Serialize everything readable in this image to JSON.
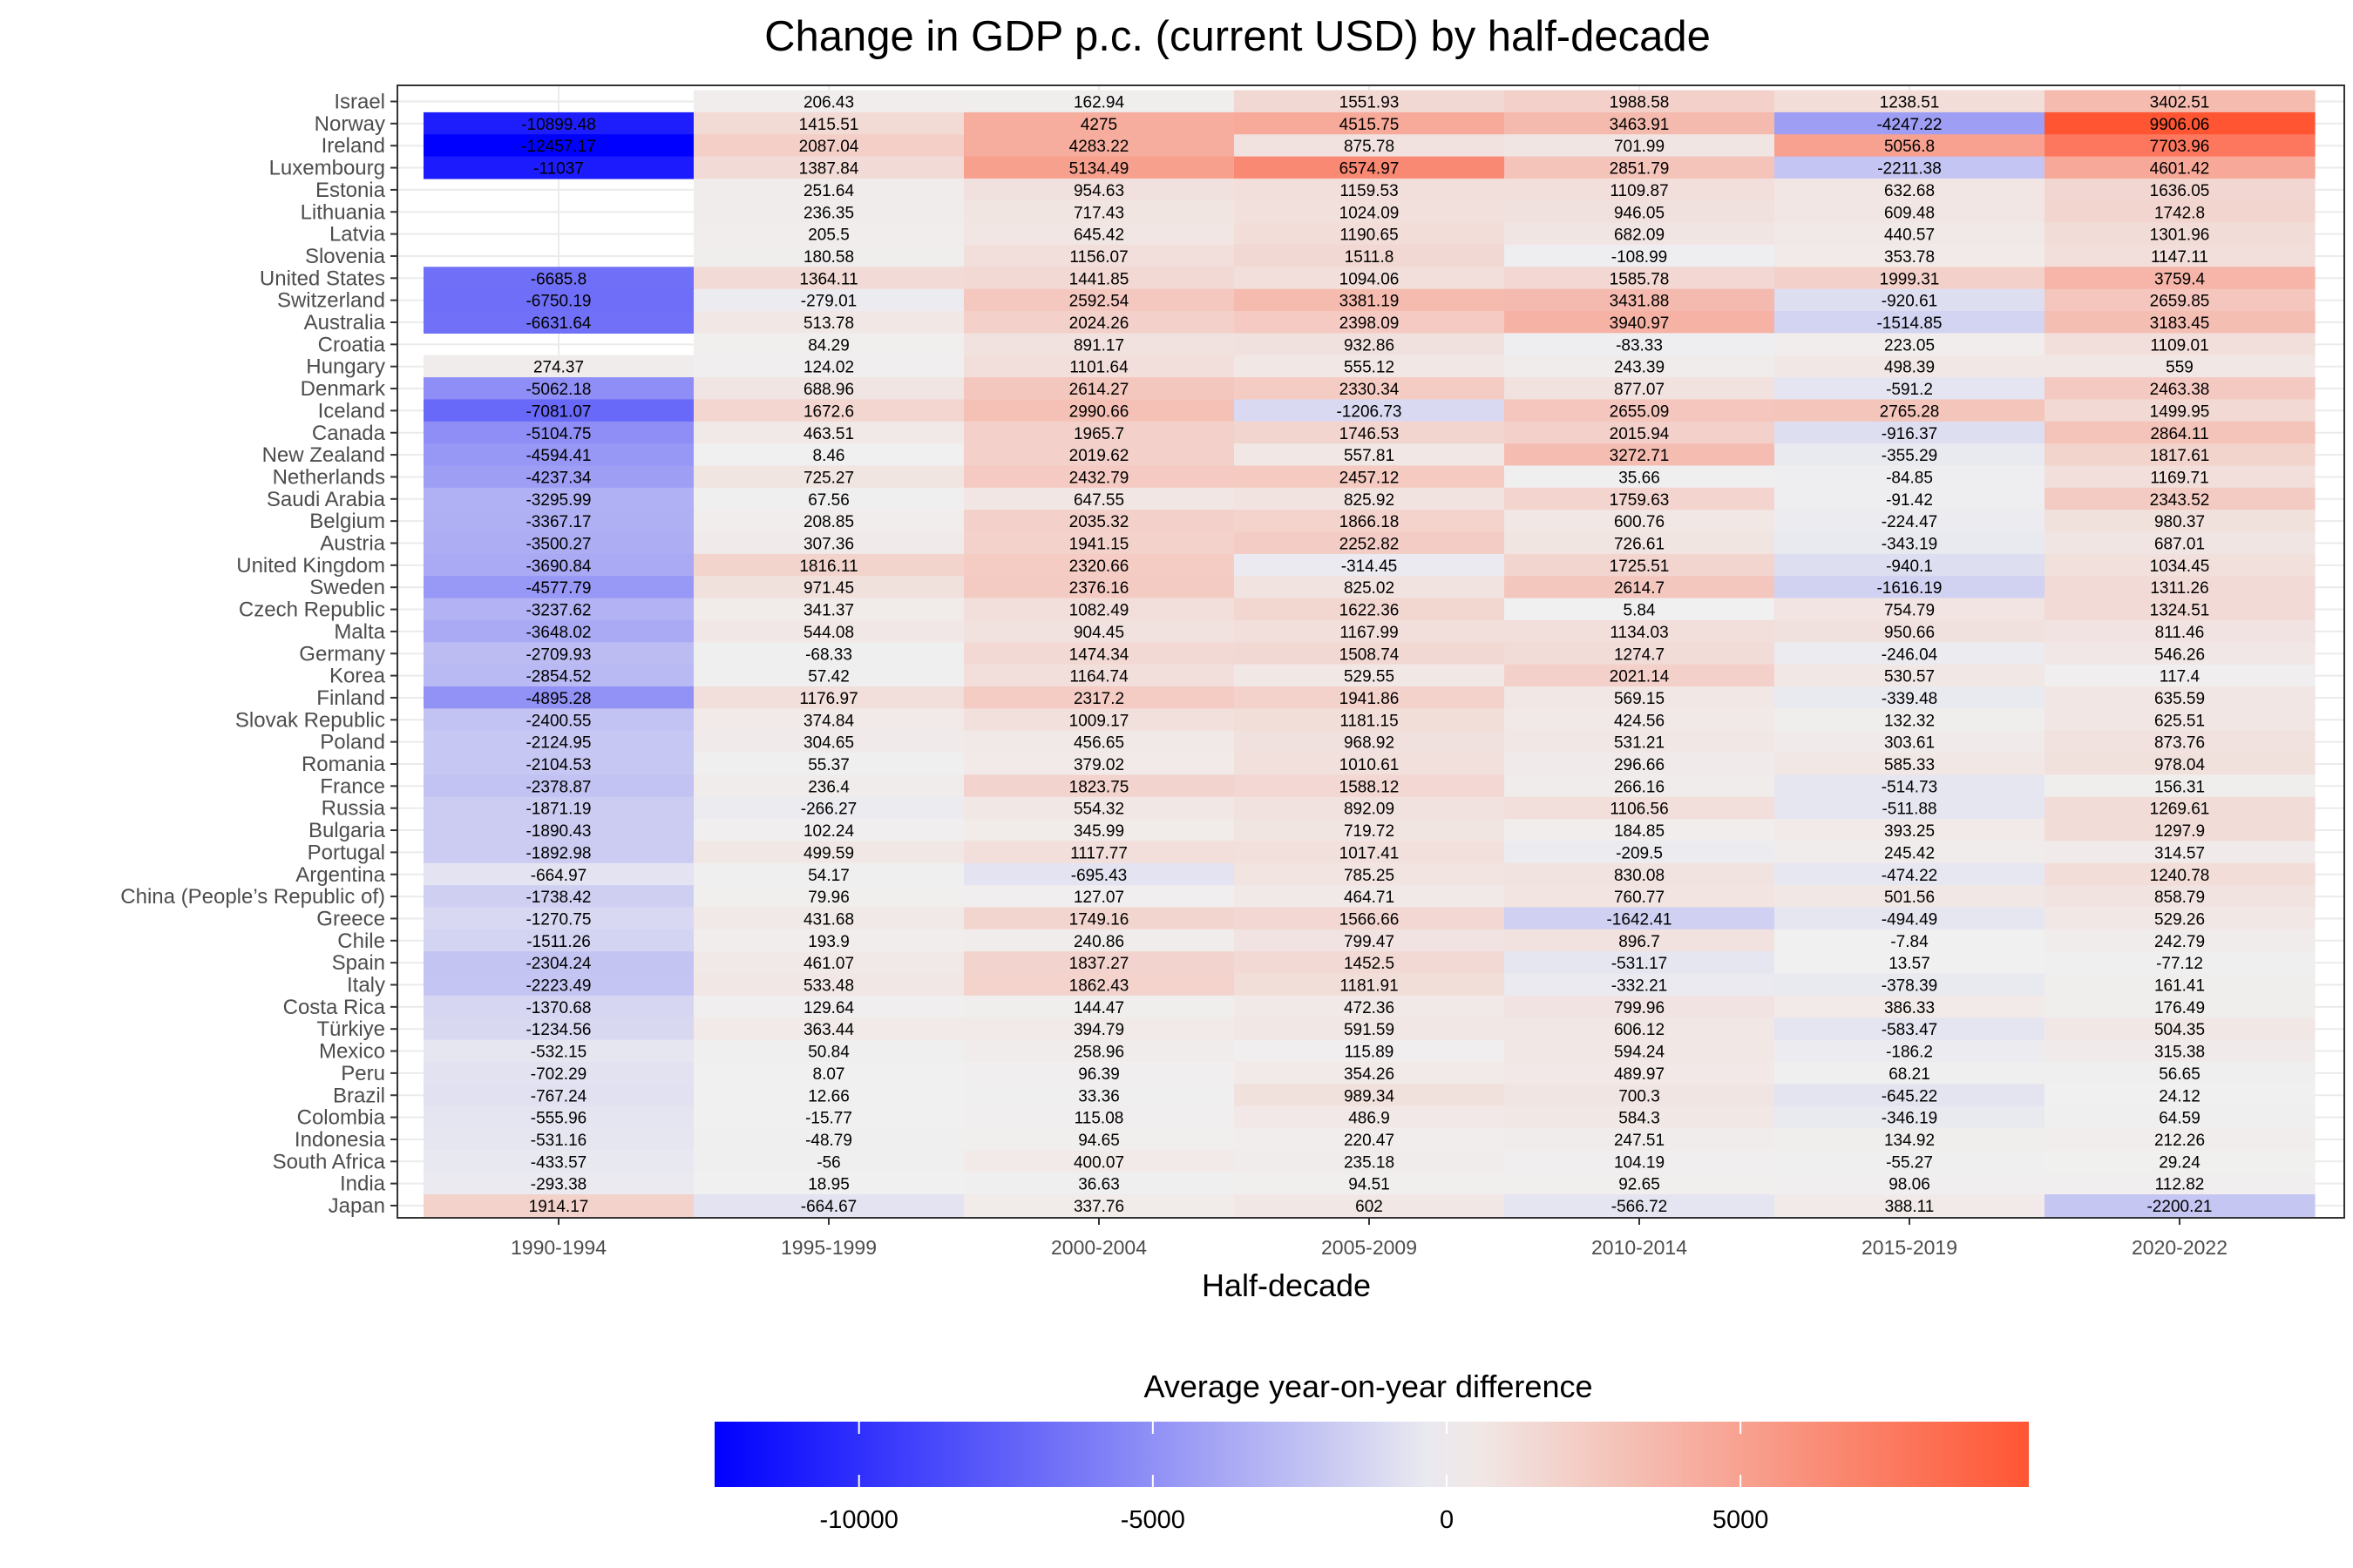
{
  "chart_data": {
    "type": "heatmap",
    "title": "Change in GDP p.c. (current USD) by half-decade",
    "xlabel": "Half-decade",
    "ylabel": "",
    "legend_title": "Average year-on-year difference",
    "legend_position": "bottom",
    "grid": true,
    "color_scale": {
      "low_color": "#0000ff",
      "mid_color": "#f0f0f0",
      "high_color": "#ff5533",
      "min": -12457.17,
      "max": 9906.06,
      "midpoint": 0,
      "ticks": [
        -10000,
        -5000,
        0,
        5000
      ],
      "tick_labels": [
        "-10000",
        "-5000",
        "0",
        "5000"
      ]
    },
    "x": [
      "1990-1994",
      "1995-1999",
      "2000-2004",
      "2005-2009",
      "2010-2014",
      "2015-2019",
      "2020-2022"
    ],
    "y": [
      "Israel",
      "Norway",
      "Ireland",
      "Luxembourg",
      "Estonia",
      "Lithuania",
      "Latvia",
      "Slovenia",
      "United States",
      "Switzerland",
      "Australia",
      "Croatia",
      "Hungary",
      "Denmark",
      "Iceland",
      "Canada",
      "New Zealand",
      "Netherlands",
      "Saudi Arabia",
      "Belgium",
      "Austria",
      "United Kingdom",
      "Sweden",
      "Czech Republic",
      "Malta",
      "Germany",
      "Korea",
      "Finland",
      "Slovak Republic",
      "Poland",
      "Romania",
      "France",
      "Russia",
      "Bulgaria",
      "Portugal",
      "Argentina",
      "China (People’s Republic of)",
      "Greece",
      "Chile",
      "Spain",
      "Italy",
      "Costa Rica",
      "Türkiye",
      "Mexico",
      "Peru",
      "Brazil",
      "Colombia",
      "Indonesia",
      "South Africa",
      "India",
      "Japan"
    ],
    "values": [
      [
        null,
        "206.43",
        "162.94",
        "1551.93",
        "1988.58",
        "1238.51",
        "3402.51"
      ],
      [
        "-10899.48",
        "1415.51",
        "4275",
        "4515.75",
        "3463.91",
        "-4247.22",
        "9906.06"
      ],
      [
        "-12457.17",
        "2087.04",
        "4283.22",
        "875.78",
        "701.99",
        "5056.8",
        "7703.96"
      ],
      [
        "-11037",
        "1387.84",
        "5134.49",
        "6574.97",
        "2851.79",
        "-2211.38",
        "4601.42"
      ],
      [
        null,
        "251.64",
        "954.63",
        "1159.53",
        "1109.87",
        "632.68",
        "1636.05"
      ],
      [
        null,
        "236.35",
        "717.43",
        "1024.09",
        "946.05",
        "609.48",
        "1742.8"
      ],
      [
        null,
        "205.5",
        "645.42",
        "1190.65",
        "682.09",
        "440.57",
        "1301.96"
      ],
      [
        null,
        "180.58",
        "1156.07",
        "1511.8",
        "-108.99",
        "353.78",
        "1147.11"
      ],
      [
        "-6685.8",
        "1364.11",
        "1441.85",
        "1094.06",
        "1585.78",
        "1999.31",
        "3759.4"
      ],
      [
        "-6750.19",
        "-279.01",
        "2592.54",
        "3381.19",
        "3431.88",
        "-920.61",
        "2659.85"
      ],
      [
        "-6631.64",
        "513.78",
        "2024.26",
        "2398.09",
        "3940.97",
        "-1514.85",
        "3183.45"
      ],
      [
        null,
        "84.29",
        "891.17",
        "932.86",
        "-83.33",
        "223.05",
        "1109.01"
      ],
      [
        "274.37",
        "124.02",
        "1101.64",
        "555.12",
        "243.39",
        "498.39",
        "559"
      ],
      [
        "-5062.18",
        "688.96",
        "2614.27",
        "2330.34",
        "877.07",
        "-591.2",
        "2463.38"
      ],
      [
        "-7081.07",
        "1672.6",
        "2990.66",
        "-1206.73",
        "2655.09",
        "2765.28",
        "1499.95"
      ],
      [
        "-5104.75",
        "463.51",
        "1965.7",
        "1746.53",
        "2015.94",
        "-916.37",
        "2864.11"
      ],
      [
        "-4594.41",
        "8.46",
        "2019.62",
        "557.81",
        "3272.71",
        "-355.29",
        "1817.61"
      ],
      [
        "-4237.34",
        "725.27",
        "2432.79",
        "2457.12",
        "35.66",
        "-84.85",
        "1169.71"
      ],
      [
        "-3295.99",
        "67.56",
        "647.55",
        "825.92",
        "1759.63",
        "-91.42",
        "2343.52"
      ],
      [
        "-3367.17",
        "208.85",
        "2035.32",
        "1866.18",
        "600.76",
        "-224.47",
        "980.37"
      ],
      [
        "-3500.27",
        "307.36",
        "1941.15",
        "2252.82",
        "726.61",
        "-343.19",
        "687.01"
      ],
      [
        "-3690.84",
        "1816.11",
        "2320.66",
        "-314.45",
        "1725.51",
        "-940.1",
        "1034.45"
      ],
      [
        "-4577.79",
        "971.45",
        "2376.16",
        "825.02",
        "2614.7",
        "-1616.19",
        "1311.26"
      ],
      [
        "-3237.62",
        "341.37",
        "1082.49",
        "1622.36",
        "5.84",
        "754.79",
        "1324.51"
      ],
      [
        "-3648.02",
        "544.08",
        "904.45",
        "1167.99",
        "1134.03",
        "950.66",
        "811.46"
      ],
      [
        "-2709.93",
        "-68.33",
        "1474.34",
        "1508.74",
        "1274.7",
        "-246.04",
        "546.26"
      ],
      [
        "-2854.52",
        "57.42",
        "1164.74",
        "529.55",
        "2021.14",
        "530.57",
        "117.4"
      ],
      [
        "-4895.28",
        "1176.97",
        "2317.2",
        "1941.86",
        "569.15",
        "-339.48",
        "635.59"
      ],
      [
        "-2400.55",
        "374.84",
        "1009.17",
        "1181.15",
        "424.56",
        "132.32",
        "625.51"
      ],
      [
        "-2124.95",
        "304.65",
        "456.65",
        "968.92",
        "531.21",
        "303.61",
        "873.76"
      ],
      [
        "-2104.53",
        "55.37",
        "379.02",
        "1010.61",
        "296.66",
        "585.33",
        "978.04"
      ],
      [
        "-2378.87",
        "236.4",
        "1823.75",
        "1588.12",
        "266.16",
        "-514.73",
        "156.31"
      ],
      [
        "-1871.19",
        "-266.27",
        "554.32",
        "892.09",
        "1106.56",
        "-511.88",
        "1269.61"
      ],
      [
        "-1890.43",
        "102.24",
        "345.99",
        "719.72",
        "184.85",
        "393.25",
        "1297.9"
      ],
      [
        "-1892.98",
        "499.59",
        "1117.77",
        "1017.41",
        "-209.5",
        "245.42",
        "314.57"
      ],
      [
        "-664.97",
        "54.17",
        "-695.43",
        "785.25",
        "830.08",
        "-474.22",
        "1240.78"
      ],
      [
        "-1738.42",
        "79.96",
        "127.07",
        "464.71",
        "760.77",
        "501.56",
        "858.79"
      ],
      [
        "-1270.75",
        "431.68",
        "1749.16",
        "1566.66",
        "-1642.41",
        "-494.49",
        "529.26"
      ],
      [
        "-1511.26",
        "193.9",
        "240.86",
        "799.47",
        "896.7",
        "-7.84",
        "242.79"
      ],
      [
        "-2304.24",
        "461.07",
        "1837.27",
        "1452.5",
        "-531.17",
        "13.57",
        "-77.12"
      ],
      [
        "-2223.49",
        "533.48",
        "1862.43",
        "1181.91",
        "-332.21",
        "-378.39",
        "161.41"
      ],
      [
        "-1370.68",
        "129.64",
        "144.47",
        "472.36",
        "799.96",
        "386.33",
        "176.49"
      ],
      [
        "-1234.56",
        "363.44",
        "394.79",
        "591.59",
        "606.12",
        "-583.47",
        "504.35"
      ],
      [
        "-532.15",
        "50.84",
        "258.96",
        "115.89",
        "594.24",
        "-186.2",
        "315.38"
      ],
      [
        "-702.29",
        "8.07",
        "96.39",
        "354.26",
        "489.97",
        "68.21",
        "56.65"
      ],
      [
        "-767.24",
        "12.66",
        "33.36",
        "989.34",
        "700.3",
        "-645.22",
        "24.12"
      ],
      [
        "-555.96",
        "-15.77",
        "115.08",
        "486.9",
        "584.3",
        "-346.19",
        "64.59"
      ],
      [
        "-531.16",
        "-48.79",
        "94.65",
        "220.47",
        "247.51",
        "134.92",
        "212.26"
      ],
      [
        "-433.57",
        "-56",
        "400.07",
        "235.18",
        "104.19",
        "-55.27",
        "29.24"
      ],
      [
        "-293.38",
        "18.95",
        "36.63",
        "94.51",
        "92.65",
        "98.06",
        "112.82"
      ],
      [
        "1914.17",
        "-664.67",
        "337.76",
        "602",
        "-566.72",
        "388.11",
        "-2200.21"
      ]
    ]
  }
}
